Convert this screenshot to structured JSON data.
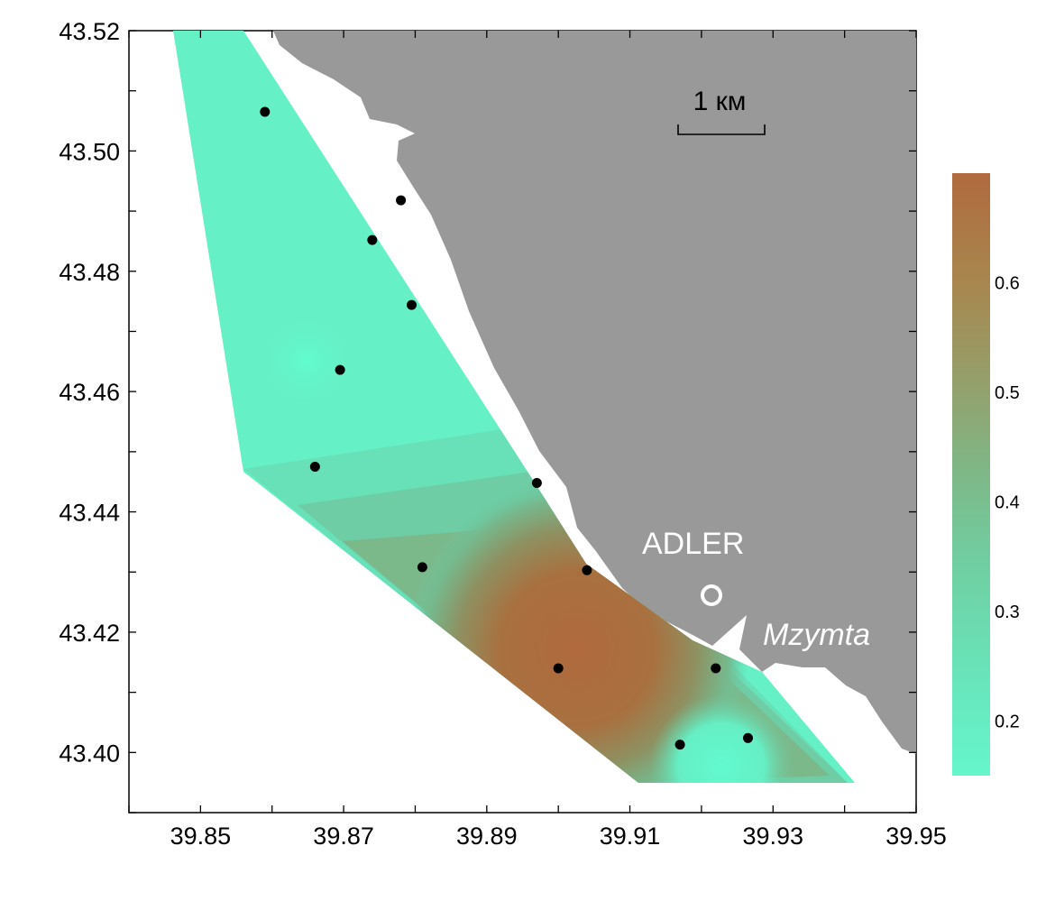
{
  "map": {
    "x_axis": {
      "ticks": [
        "39.85",
        "39.87",
        "39.89",
        "39.91",
        "39.93",
        "39.95"
      ],
      "range": [
        39.84,
        39.95
      ]
    },
    "y_axis": {
      "ticks": [
        "43.52",
        "43.50",
        "43.48",
        "43.46",
        "43.44",
        "43.42",
        "43.40"
      ],
      "range": [
        43.39,
        43.52
      ]
    },
    "scale_bar": {
      "label": "1 км"
    },
    "places": [
      {
        "label": "ADLER"
      },
      {
        "label": "Mzymta"
      }
    ],
    "stations": [
      {
        "lon": 39.859,
        "lat": 43.5065
      },
      {
        "lon": 39.878,
        "lat": 43.4918
      },
      {
        "lon": 39.874,
        "lat": 43.4852
      },
      {
        "lon": 39.8795,
        "lat": 43.4744
      },
      {
        "lon": 39.8695,
        "lat": 43.4636
      },
      {
        "lon": 39.866,
        "lat": 43.4475
      },
      {
        "lon": 39.897,
        "lat": 43.4448
      },
      {
        "lon": 39.881,
        "lat": 43.4308
      },
      {
        "lon": 39.904,
        "lat": 43.4303
      },
      {
        "lon": 39.9,
        "lat": 43.414
      },
      {
        "lon": 39.922,
        "lat": 43.414
      },
      {
        "lon": 39.917,
        "lat": 43.4013
      },
      {
        "lon": 39.9265,
        "lat": 43.4024
      }
    ],
    "colors": {
      "land": "#999999",
      "low": "#66f2c8",
      "mid": "#6cc49c",
      "high": "#b36b3e"
    }
  },
  "colorbar": {
    "ticks": [
      "0.6",
      "0.5",
      "0.4",
      "0.3",
      "0.2"
    ],
    "colors": [
      "#66f2c8",
      "#6ad8ae",
      "#70c296",
      "#82aa7c",
      "#9c8a5e",
      "#b06e42"
    ]
  }
}
